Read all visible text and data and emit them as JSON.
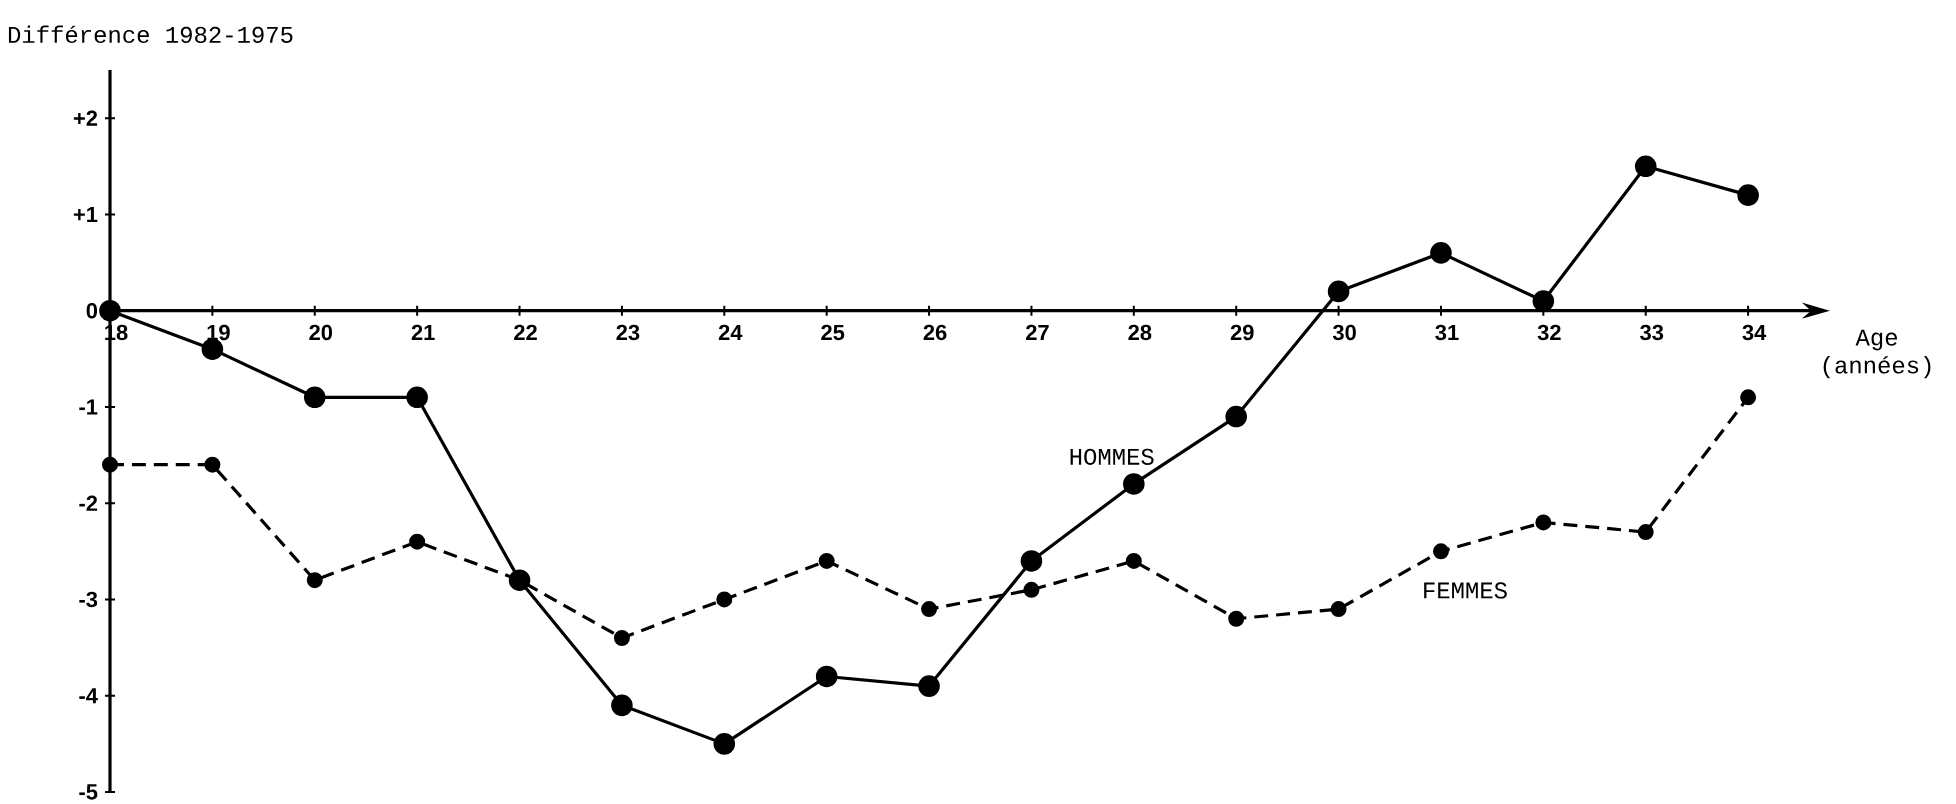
{
  "chart_data": {
    "type": "line",
    "title": "Différence 1982-1975",
    "xlabel": "Age (années)",
    "categories": [
      "18",
      "19",
      "20",
      "21",
      "22",
      "23",
      "24",
      "25",
      "26",
      "27",
      "28",
      "29",
      "30",
      "31",
      "32",
      "33",
      "34"
    ],
    "series": [
      {
        "name": "HOMMES",
        "color": "#000000",
        "line_style": "solid",
        "values": [
          0,
          -0.4,
          -0.9,
          -0.9,
          -2.8,
          -4.1,
          -4.5,
          -3.8,
          -3.9,
          -2.6,
          -1.8,
          -1.1,
          0.2,
          0.6,
          0.1,
          1.5,
          1.2
        ]
      },
      {
        "name": "FEMMES",
        "color": "#000000",
        "line_style": "dashed",
        "values": [
          -1.6,
          -1.6,
          -2.8,
          -2.4,
          -2.8,
          -3.4,
          -3.0,
          -2.6,
          -3.1,
          -2.9,
          -2.6,
          -3.2,
          -3.1,
          -2.5,
          -2.2,
          -2.3,
          -0.9
        ]
      }
    ],
    "ylim": [
      -5,
      2.5
    ],
    "yticks": [
      {
        "value": 2,
        "label": "+2"
      },
      {
        "value": 1,
        "label": "+1"
      },
      0,
      -1,
      -2,
      -3,
      -4,
      -5
    ],
    "marker": "circle"
  }
}
